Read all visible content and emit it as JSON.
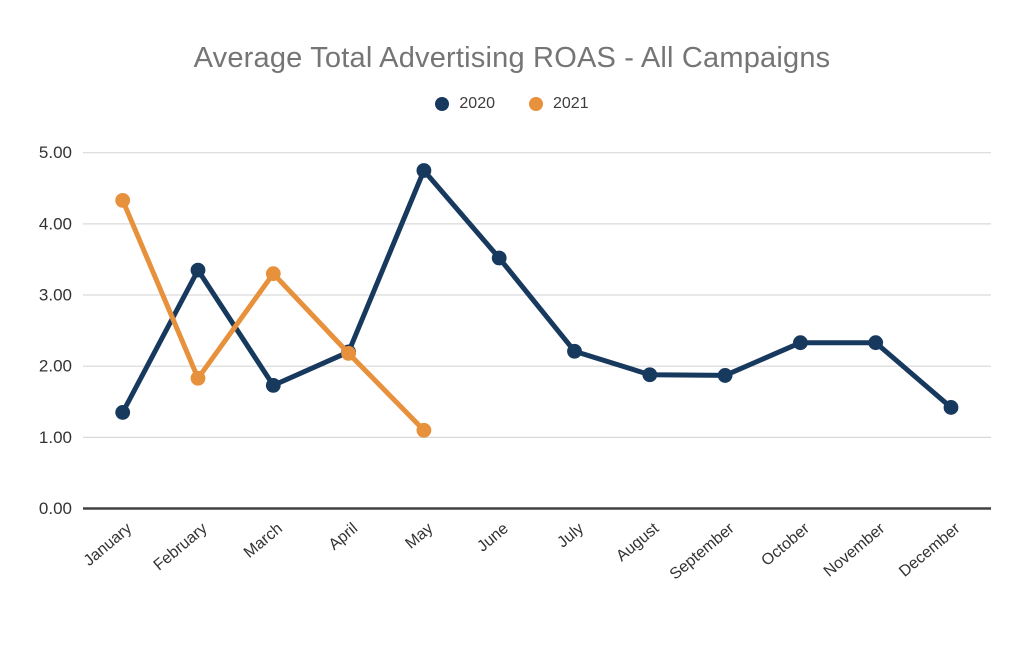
{
  "chart": {
    "title": "Average Total Advertising ROAS - All Campaigns"
  },
  "chart_data": {
    "type": "line",
    "title": "Average Total Advertising ROAS - All Campaigns",
    "categories": [
      "January",
      "February",
      "March",
      "April",
      "May",
      "June",
      "July",
      "August",
      "September",
      "October",
      "November",
      "December"
    ],
    "series": [
      {
        "name": "2020",
        "color": "#17395E",
        "values": [
          1.35,
          3.35,
          1.73,
          2.2,
          4.75,
          3.52,
          2.21,
          1.88,
          1.87,
          2.33,
          2.33,
          1.42
        ]
      },
      {
        "name": "2021",
        "color": "#E8913C",
        "values": [
          4.33,
          1.83,
          3.3,
          2.18,
          1.1,
          null,
          null,
          null,
          null,
          null,
          null,
          null
        ]
      }
    ],
    "xlabel": "",
    "ylabel": "",
    "ylim": [
      0,
      5
    ],
    "y_ticks": [
      "0.00",
      "1.00",
      "2.00",
      "3.00",
      "4.00",
      "5.00"
    ],
    "grid": "horizontal",
    "legend_position": "top",
    "colors": {
      "title_text": "#757575",
      "axis_text": "#333333",
      "legend_text": "#3d3d3d",
      "gridline": "#d9d9d9",
      "baseline": "#424242",
      "background": "#ffffff"
    }
  }
}
